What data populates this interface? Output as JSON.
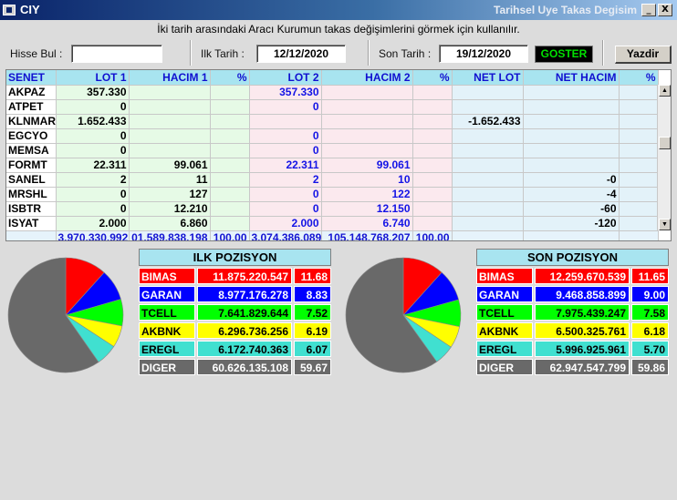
{
  "window": {
    "app_title": "CIY",
    "title": "Tarihsel Uye Takas Degisim",
    "minimize_label": "_",
    "close_label": "X"
  },
  "instruction": "İki tarih arasındaki  Aracı Kurumun takas değişimlerini görmek için kullanılır.",
  "toolbar": {
    "hisse_label": "Hisse Bul :",
    "hisse_value": "",
    "ilk_tarih_label": "Ilk Tarih :",
    "ilk_tarih_value": "12/12/2020",
    "son_tarih_label": "Son Tarih :",
    "son_tarih_value": "19/12/2020",
    "goster_label": "GOSTER",
    "yazdir_label": "Yazdir"
  },
  "grid": {
    "columns": [
      "SENET",
      "LOT 1",
      "HACIM 1",
      "%",
      "LOT 2",
      "HACIM 2",
      "%",
      "NET LOT",
      "NET HACIM",
      "%"
    ],
    "rows": [
      [
        "AKPAZ",
        "357.330",
        "",
        "",
        "357.330",
        "",
        "",
        "",
        "",
        ""
      ],
      [
        "ATPET",
        "0",
        "",
        "",
        "0",
        "",
        "",
        "",
        "",
        ""
      ],
      [
        "KLNMAR",
        "1.652.433",
        "",
        "",
        "",
        "",
        "",
        "-1.652.433",
        "",
        ""
      ],
      [
        "EGCYO",
        "0",
        "",
        "",
        "0",
        "",
        "",
        "",
        "",
        ""
      ],
      [
        "MEMSA",
        "0",
        "",
        "",
        "0",
        "",
        "",
        "",
        "",
        ""
      ],
      [
        "FORMT",
        "22.311",
        "99.061",
        "",
        "22.311",
        "99.061",
        "",
        "",
        "",
        ""
      ],
      [
        "SANEL",
        "2",
        "11",
        "",
        "2",
        "10",
        "",
        "",
        "-0",
        ""
      ],
      [
        "MRSHL",
        "0",
        "127",
        "",
        "0",
        "122",
        "",
        "",
        "-4",
        ""
      ],
      [
        "ISBTR",
        "0",
        "12.210",
        "",
        "0",
        "12.150",
        "",
        "",
        "-60",
        ""
      ],
      [
        "ISYAT",
        "2.000",
        "6.860",
        "",
        "2.000",
        "6.740",
        "",
        "",
        "-120",
        ""
      ]
    ],
    "totals": [
      "",
      "3.970.330.992",
      "01.589.838.198",
      "100,00",
      "3.074.386.089",
      "105.148.768.207",
      "100,00",
      "",
      "",
      ""
    ]
  },
  "ilk_pozisyon": {
    "title": "ILK POZISYON",
    "rows": [
      {
        "name": "BIMAS",
        "value": "11.875.220.547",
        "pct": "11.68",
        "bg": "#ff0000",
        "fg": "#ffffff"
      },
      {
        "name": "GARAN",
        "value": "8.977.176.278",
        "pct": "8.83",
        "bg": "#0000ff",
        "fg": "#ffffff"
      },
      {
        "name": "TCELL",
        "value": "7.641.829.644",
        "pct": "7.52",
        "bg": "#00ff00",
        "fg": "#000000"
      },
      {
        "name": "AKBNK",
        "value": "6.296.736.256",
        "pct": "6.19",
        "bg": "#ffff00",
        "fg": "#000000"
      },
      {
        "name": "EREGL",
        "value": "6.172.740.363",
        "pct": "6.07",
        "bg": "#40e0d0",
        "fg": "#000000"
      },
      {
        "name": "DIGER",
        "value": "60.626.135.108",
        "pct": "59.67",
        "bg": "#696969",
        "fg": "#ffffff"
      }
    ]
  },
  "son_pozisyon": {
    "title": "SON POZISYON",
    "rows": [
      {
        "name": "BIMAS",
        "value": "12.259.670.539",
        "pct": "11.65",
        "bg": "#ff0000",
        "fg": "#ffffff"
      },
      {
        "name": "GARAN",
        "value": "9.468.858.899",
        "pct": "9.00",
        "bg": "#0000ff",
        "fg": "#ffffff"
      },
      {
        "name": "TCELL",
        "value": "7.975.439.247",
        "pct": "7.58",
        "bg": "#00ff00",
        "fg": "#000000"
      },
      {
        "name": "AKBNK",
        "value": "6.500.325.761",
        "pct": "6.18",
        "bg": "#ffff00",
        "fg": "#000000"
      },
      {
        "name": "EREGL",
        "value": "5.996.925.961",
        "pct": "5.70",
        "bg": "#40e0d0",
        "fg": "#000000"
      },
      {
        "name": "DIGER",
        "value": "62.947.547.799",
        "pct": "59.86",
        "bg": "#696969",
        "fg": "#ffffff"
      }
    ]
  },
  "chart_data": [
    {
      "type": "pie",
      "categories": [
        "BIMAS",
        "GARAN",
        "TCELL",
        "AKBNK",
        "EREGL",
        "DIGER"
      ],
      "values": [
        11.68,
        8.83,
        7.52,
        6.19,
        6.07,
        59.67
      ],
      "colors": [
        "#ff0000",
        "#0000ff",
        "#00ff00",
        "#ffff00",
        "#40e0d0",
        "#696969"
      ]
    },
    {
      "type": "pie",
      "categories": [
        "BIMAS",
        "GARAN",
        "TCELL",
        "AKBNK",
        "EREGL",
        "DIGER"
      ],
      "values": [
        11.65,
        9.0,
        7.58,
        6.18,
        5.7,
        59.86
      ],
      "colors": [
        "#ff0000",
        "#0000ff",
        "#00ff00",
        "#ffff00",
        "#40e0d0",
        "#696969"
      ]
    }
  ]
}
